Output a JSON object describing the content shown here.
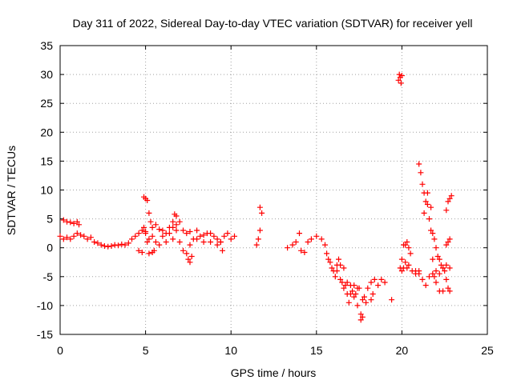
{
  "chart_data": {
    "type": "scatter",
    "title": "Day 311 of 2022, Sidereal Day-to-day VTEC variation (SDTVAR) for receiver yell",
    "xlabel": "GPS time / hours",
    "ylabel": "SDTVAR / TECUs",
    "xlim": [
      0,
      25
    ],
    "ylim": [
      -15,
      35
    ],
    "xticks": [
      0,
      5,
      10,
      15,
      20,
      25
    ],
    "yticks": [
      -15,
      -10,
      -5,
      0,
      5,
      10,
      15,
      20,
      25,
      30,
      35
    ],
    "xtick_labels": [
      "0",
      "5",
      "10",
      "15",
      "20",
      "25"
    ],
    "ytick_labels": [
      "-15",
      "-10",
      "-5",
      "0",
      "5",
      "10",
      "15",
      "20",
      "25",
      "30",
      "35"
    ],
    "grid": true,
    "marker": "+",
    "color": "#ff0000",
    "series": [
      {
        "name": "SDTVAR",
        "x": [
          0.0,
          0.2,
          0.4,
          0.6,
          0.8,
          1.0,
          1.2,
          1.4,
          1.6,
          1.8,
          2.0,
          2.2,
          2.4,
          2.6,
          2.8,
          3.0,
          3.2,
          3.4,
          3.6,
          3.8,
          4.0,
          4.2,
          4.4,
          4.6,
          4.8,
          5.0,
          5.2,
          5.4,
          5.6,
          5.8,
          6.0,
          6.2,
          6.4,
          6.6,
          6.8,
          7.0,
          7.2,
          7.4,
          7.6,
          7.8,
          8.0,
          8.2,
          8.4,
          8.6,
          8.8,
          9.0,
          9.2,
          9.4,
          9.6,
          9.8,
          10.0,
          10.2,
          0.2,
          0.4,
          0.6,
          0.8,
          1.0,
          1.1,
          4.9,
          5.0,
          5.1,
          5.2,
          5.3,
          5.4,
          5.6,
          5.8,
          6.0,
          6.2,
          6.4,
          6.6,
          6.8,
          7.0,
          7.2,
          7.4,
          7.6,
          8.0,
          8.4,
          8.8,
          9.2,
          9.4,
          9.5,
          4.6,
          4.8,
          4.9,
          5.0,
          5.1,
          5.2,
          5.4,
          5.5,
          6.6,
          6.7,
          6.8,
          7.5,
          7.6,
          7.7,
          11.5,
          11.6,
          11.7,
          11.7,
          11.8,
          13.3,
          13.6,
          13.8,
          14.0,
          14.1,
          14.3,
          14.5,
          14.7,
          15.0,
          15.3,
          15.5,
          15.6,
          15.7,
          15.8,
          15.9,
          16.0,
          16.1,
          16.2,
          16.3,
          16.4,
          16.5,
          16.6,
          16.7,
          16.8,
          16.9,
          17.0,
          17.1,
          17.2,
          17.3,
          17.4,
          17.5,
          17.6,
          17.7,
          17.8,
          17.9,
          18.0,
          18.2,
          18.4,
          18.6,
          18.8,
          19.0,
          16.2,
          16.4,
          16.6,
          16.8,
          17.0,
          17.2,
          17.4,
          17.6,
          17.7,
          18.2,
          18.3,
          19.4,
          19.8,
          19.85,
          19.9,
          19.95,
          20.0,
          19.9,
          20.0,
          20.1,
          20.2,
          20.3,
          20.4,
          20.6,
          20.8,
          21.0,
          21.2,
          21.4,
          21.6,
          21.8,
          22.0,
          22.2,
          22.4,
          22.6,
          22.8,
          21.0,
          21.1,
          21.2,
          21.3,
          21.4,
          21.5,
          21.6,
          21.7,
          21.8,
          21.9,
          22.0,
          22.1,
          22.2,
          22.3,
          22.4,
          22.5,
          22.6,
          22.7,
          22.8,
          20.0,
          20.1,
          20.2,
          20.3,
          20.4,
          20.5,
          20.8,
          21.0,
          21.3,
          21.5,
          21.7,
          21.8,
          21.9,
          22.0,
          22.2,
          22.4,
          22.6,
          22.7,
          22.8,
          22.9,
          22.6,
          22.7,
          22.8
        ],
        "y": [
          2.0,
          1.5,
          1.8,
          1.5,
          2.0,
          2.5,
          2.2,
          2.0,
          1.5,
          1.8,
          1.0,
          0.8,
          0.5,
          0.3,
          0.2,
          0.3,
          0.5,
          0.4,
          0.6,
          0.5,
          0.8,
          1.5,
          2.0,
          2.5,
          3.0,
          2.5,
          1.5,
          2.0,
          1.0,
          0.5,
          2.0,
          1.0,
          2.5,
          1.5,
          3.0,
          1.0,
          -0.5,
          -1.0,
          0.5,
          1.5,
          1.5,
          2.0,
          1.0,
          2.5,
          1.0,
          2.0,
          0.5,
          1.0,
          2.0,
          2.5,
          1.5,
          2.0,
          4.8,
          4.5,
          4.4,
          4.2,
          4.5,
          4.0,
          8.8,
          8.5,
          8.2,
          6.0,
          4.5,
          3.5,
          4.0,
          3.2,
          3.0,
          2.5,
          3.5,
          4.5,
          5.5,
          4.5,
          3.0,
          2.5,
          2.8,
          3.0,
          2.2,
          2.5,
          1.5,
          1.0,
          -0.5,
          -0.5,
          -0.8,
          3.5,
          2.8,
          1.0,
          -1.0,
          -0.8,
          -0.5,
          3.5,
          5.8,
          4.0,
          -2.0,
          -2.5,
          -1.5,
          0.5,
          1.5,
          3.0,
          7.0,
          6.0,
          0.0,
          0.5,
          1.0,
          2.5,
          -0.5,
          -0.8,
          1.0,
          1.5,
          2.0,
          1.5,
          0.5,
          -1.0,
          -2.0,
          -2.5,
          -3.5,
          -4.0,
          -5.0,
          -3.0,
          -2.0,
          -5.5,
          -6.0,
          -7.0,
          -6.5,
          -8.0,
          -9.5,
          -8.0,
          -7.5,
          -6.5,
          -8.0,
          -10.0,
          -7.0,
          -12.5,
          -9.0,
          -8.5,
          -9.5,
          -7.0,
          -6.0,
          -5.5,
          -6.5,
          -5.5,
          -6.0,
          -4.0,
          -3.0,
          -3.5,
          -6.0,
          -6.5,
          -8.5,
          -7.0,
          -11.5,
          -12.0,
          -9.0,
          -8.0,
          -9.0,
          29.0,
          30.0,
          29.5,
          28.5,
          29.8,
          -3.5,
          -2.0,
          0.5,
          -2.5,
          -3.5,
          -3.0,
          -4.0,
          -4.5,
          -4.0,
          -5.5,
          -6.5,
          -5.0,
          -4.5,
          -4.0,
          -4.5,
          -3.5,
          -3.0,
          -3.5,
          14.5,
          13.0,
          11.0,
          9.5,
          8.0,
          7.5,
          5.0,
          3.0,
          2.5,
          1.5,
          0.0,
          -1.5,
          -2.0,
          -3.0,
          -3.5,
          -4.0,
          -5.5,
          -7.0,
          -7.5,
          -4.0,
          -3.5,
          0.5,
          1.0,
          0.0,
          -1.0,
          -4.0,
          -4.5,
          6.0,
          9.5,
          7.0,
          -2.0,
          -5.0,
          -6.0,
          -7.5,
          -7.5,
          6.5,
          8.0,
          8.5,
          9.0,
          0.5,
          1.0,
          1.5
        ]
      }
    ]
  }
}
